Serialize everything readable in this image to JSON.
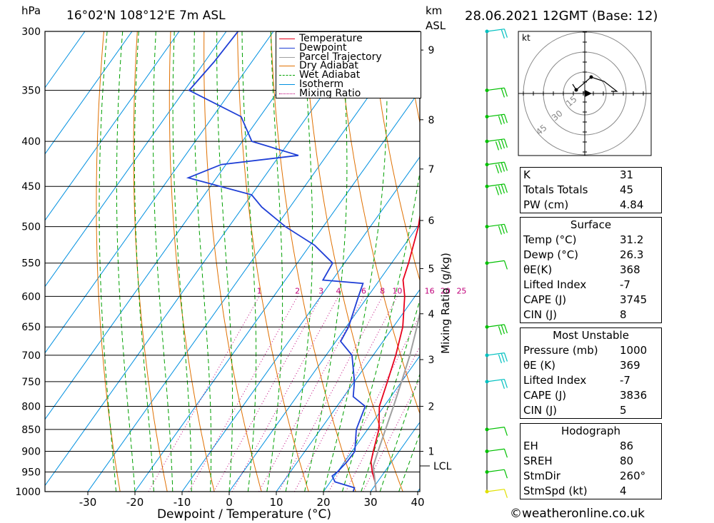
{
  "header": {
    "units_left": "hPa",
    "location": "16°02'N  108°12'E  7m  ASL",
    "units_km": "km",
    "units_asl": "ASL",
    "datetime": "28.06.2021  12GMT  (Base: 12)",
    "credit": "©weatheronline.co.uk"
  },
  "legend": [
    {
      "label": "Temperature",
      "color": "#e8001c",
      "style": "solid"
    },
    {
      "label": "Dewpoint",
      "color": "#1f3fd6",
      "style": "solid"
    },
    {
      "label": "Parcel Trajectory",
      "color": "#a0a0a0",
      "style": "solid"
    },
    {
      "label": "Dry Adiabat",
      "color": "#e07000",
      "style": "solid"
    },
    {
      "label": "Wet Adiabat",
      "color": "#00a000",
      "style": "dashed"
    },
    {
      "label": "Isotherm",
      "color": "#0090e0",
      "style": "solid"
    },
    {
      "label": "Mixing Ratio",
      "color": "#c0007a",
      "style": "dotted"
    }
  ],
  "chart_data": {
    "type": "line",
    "xlabel": "Dewpoint / Temperature (°C)",
    "ylabel": "hPa",
    "x_ticks": [
      -30,
      -20,
      -10,
      0,
      10,
      20,
      30,
      40
    ],
    "y_ticks": [
      300,
      350,
      400,
      450,
      500,
      550,
      600,
      650,
      700,
      750,
      800,
      850,
      900,
      950,
      1000
    ],
    "xlim": [
      -40,
      40
    ],
    "ylim": [
      1000,
      300
    ],
    "y_scale": "log-pressure",
    "km_axis_label": "km ASL",
    "km_ticks": [
      {
        "label": "9",
        "p": 315
      },
      {
        "label": "8",
        "p": 378
      },
      {
        "label": "7",
        "p": 430
      },
      {
        "label": "6",
        "p": 492
      },
      {
        "label": "5",
        "p": 558
      },
      {
        "label": "4",
        "p": 628
      },
      {
        "label": "3",
        "p": 708
      },
      {
        "label": "2",
        "p": 800
      },
      {
        "label": "1",
        "p": 900
      }
    ],
    "lcl_label": "LCL",
    "lcl_p": 935,
    "mixing_ratio_axis_label": "Mixing Ratio (g/kg)",
    "mixing_ratio_labels": [
      "1",
      "2",
      "3",
      "4",
      "6",
      "8",
      "10",
      "16",
      "20",
      "25"
    ],
    "series": [
      {
        "name": "Temperature",
        "color": "#e8001c",
        "points": [
          [
            1000,
            31.2
          ],
          [
            975,
            29.5
          ],
          [
            950,
            27.4
          ],
          [
            925,
            25.6
          ],
          [
            900,
            24.5
          ],
          [
            850,
            22.4
          ],
          [
            800,
            19.0
          ],
          [
            750,
            17.0
          ],
          [
            700,
            14.8
          ],
          [
            650,
            12.0
          ],
          [
            600,
            7.8
          ],
          [
            575,
            5.0
          ],
          [
            550,
            3.6
          ],
          [
            500,
            0.2
          ],
          [
            450,
            -4.6
          ],
          [
            430,
            -5.4
          ],
          [
            400,
            -10.2
          ],
          [
            375,
            -15.0
          ],
          [
            350,
            -20.5
          ]
        ]
      },
      {
        "name": "Dewpoint",
        "color": "#1f3fd6",
        "points": [
          [
            1000,
            26.3
          ],
          [
            990,
            26.0
          ],
          [
            975,
            21.0
          ],
          [
            960,
            19.5
          ],
          [
            950,
            20.0
          ],
          [
            925,
            20.5
          ],
          [
            900,
            20.6
          ],
          [
            850,
            17.6
          ],
          [
            800,
            16.0
          ],
          [
            780,
            12.0
          ],
          [
            750,
            10.0
          ],
          [
            700,
            5.5
          ],
          [
            675,
            1.0
          ],
          [
            650,
            0.5
          ],
          [
            600,
            -2.0
          ],
          [
            580,
            -3.0
          ],
          [
            575,
            -12.0
          ],
          [
            550,
            -12.5
          ],
          [
            525,
            -19.0
          ],
          [
            500,
            -28.0
          ],
          [
            475,
            -36.0
          ],
          [
            460,
            -40.0
          ],
          [
            440,
            -56.0
          ],
          [
            425,
            -51.0
          ],
          [
            415,
            -36.0
          ],
          [
            400,
            -48.0
          ],
          [
            375,
            -54.0
          ],
          [
            350,
            -69.0
          ],
          [
            325,
            -68.0
          ],
          [
            300,
            -67.5
          ],
          [
            296,
            -69.0
          ]
        ]
      },
      {
        "name": "Parcel Trajectory",
        "color": "#a0a0a0",
        "points": [
          [
            1000,
            31.2
          ],
          [
            935,
            26.7
          ],
          [
            900,
            25.5
          ],
          [
            850,
            23.8
          ],
          [
            800,
            22.0
          ],
          [
            750,
            20.0
          ],
          [
            700,
            17.8
          ],
          [
            650,
            15.0
          ],
          [
            600,
            11.8
          ],
          [
            550,
            8.0
          ],
          [
            500,
            3.5
          ],
          [
            450,
            -2.0
          ],
          [
            400,
            -9.0
          ],
          [
            350,
            -17.8
          ]
        ]
      }
    ],
    "wind_barbs": [
      {
        "p": 1000,
        "kt": 5
      },
      {
        "p": 950,
        "kt": 5
      },
      {
        "p": 900,
        "kt": 5
      },
      {
        "p": 850,
        "kt": 5
      },
      {
        "p": 750,
        "kt": 10
      },
      {
        "p": 700,
        "kt": 15
      },
      {
        "p": 650,
        "kt": 15
      },
      {
        "p": 550,
        "kt": 5
      },
      {
        "p": 500,
        "kt": 15
      },
      {
        "p": 450,
        "kt": 20
      },
      {
        "p": 425,
        "kt": 20
      },
      {
        "p": 400,
        "kt": 20
      },
      {
        "p": 375,
        "kt": 15
      },
      {
        "p": 350,
        "kt": 10
      },
      {
        "p": 300,
        "kt": 10
      }
    ],
    "hodograph": {
      "unit_label": "kt",
      "ring_labels": [
        "15",
        "30",
        "45"
      ]
    }
  },
  "stats": {
    "general": [
      {
        "label": "K",
        "value": "31"
      },
      {
        "label": "Totals Totals",
        "value": "45"
      },
      {
        "label": "PW (cm)",
        "value": "4.84"
      }
    ],
    "surface_title": "Surface",
    "surface": [
      {
        "label": "Temp (°C)",
        "value": "31.2"
      },
      {
        "label": "Dewp (°C)",
        "value": "26.3"
      },
      {
        "label": "θE(K)",
        "value": "368"
      },
      {
        "label": "Lifted Index",
        "value": "-7"
      },
      {
        "label": "CAPE (J)",
        "value": "3745"
      },
      {
        "label": "CIN (J)",
        "value": "8"
      }
    ],
    "mu_title": "Most Unstable",
    "most_unstable": [
      {
        "label": "Pressure (mb)",
        "value": "1000"
      },
      {
        "label": "θE (K)",
        "value": "369"
      },
      {
        "label": "Lifted Index",
        "value": "-7"
      },
      {
        "label": "CAPE (J)",
        "value": "3836"
      },
      {
        "label": "CIN (J)",
        "value": "5"
      }
    ],
    "hodo_title": "Hodograph",
    "hodograph": [
      {
        "label": "EH",
        "value": "86"
      },
      {
        "label": "SREH",
        "value": "80"
      },
      {
        "label": "StmDir",
        "value": "260°"
      },
      {
        "label": "StmSpd (kt)",
        "value": "4"
      }
    ]
  },
  "colors": {
    "temperature": "#e8001c",
    "dewpoint": "#1f3fd6",
    "parcel": "#a0a0a0",
    "dry_adiabat": "#e07000",
    "wet_adiabat": "#00a000",
    "isotherm": "#0090e0",
    "mixing_ratio": "#c0007a"
  }
}
